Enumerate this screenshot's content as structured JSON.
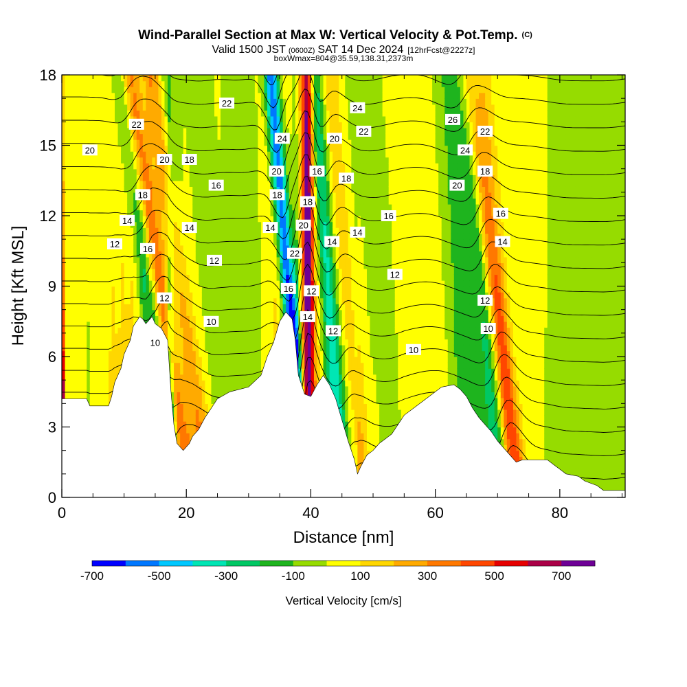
{
  "title": {
    "main": "Wind-Parallel Section at Max W: Vertical Velocity & Pot.Temp.",
    "copyright": "(C)",
    "valid_a": "Valid 1500 JST",
    "valid_utc": "(0600Z)",
    "valid_b": "SAT 14 Dec 2024",
    "fcst": "[12hrFcst@2227z]",
    "boxinfo": "boxWmax=804@35.59,138.31,2373m"
  },
  "chart_data": {
    "type": "heatmap",
    "xlabel": "Distance [nm]",
    "ylabel": "Height [Kft MSL]",
    "xlim": [
      0,
      90.5
    ],
    "ylim": [
      0,
      18
    ],
    "x_ticks": [
      0,
      20,
      40,
      60,
      80
    ],
    "y_ticks": [
      0,
      3,
      6,
      9,
      12,
      15,
      18
    ],
    "x_minor_step": 5,
    "y_minor_step": 1,
    "colorbar": {
      "label": "Vertical Velocity [cm/s]",
      "min": -700,
      "max": 800,
      "step": 100,
      "tick_labels": [
        -700,
        -500,
        -300,
        -100,
        100,
        300,
        500,
        700
      ],
      "colors": [
        "#0000ff",
        "#0077ff",
        "#00c8ff",
        "#00e6b4",
        "#00c864",
        "#1eb41e",
        "#96dc00",
        "#ffff00",
        "#ffd700",
        "#ffaa00",
        "#ff7800",
        "#ff4600",
        "#e60000",
        "#aa0046",
        "#6e0096"
      ]
    },
    "terrain_kft": [
      [
        0,
        4.2
      ],
      [
        4,
        4.2
      ],
      [
        4.5,
        3.9
      ],
      [
        7.5,
        3.9
      ],
      [
        8,
        4.3
      ],
      [
        8.5,
        4.9
      ],
      [
        9.5,
        5.5
      ],
      [
        10,
        6.1
      ],
      [
        11,
        6.7
      ],
      [
        11.5,
        7.3
      ],
      [
        12.5,
        7.7
      ],
      [
        13,
        7.6
      ],
      [
        13.5,
        7.4
      ],
      [
        14.5,
        7.7
      ],
      [
        15,
        7.4
      ],
      [
        16,
        7.2
      ],
      [
        17,
        6.7
      ],
      [
        17.5,
        4.6
      ],
      [
        18,
        3.1
      ],
      [
        18.5,
        2.3
      ],
      [
        19.5,
        2.0
      ],
      [
        20.5,
        2.3
      ],
      [
        21,
        2.6
      ],
      [
        22,
        2.9
      ],
      [
        23,
        3.4
      ],
      [
        24,
        3.8
      ],
      [
        25,
        4.2
      ],
      [
        27,
        4.5
      ],
      [
        30,
        4.7
      ],
      [
        32,
        5.2
      ],
      [
        33,
        6.0
      ],
      [
        34,
        6.6
      ],
      [
        35,
        7.5
      ],
      [
        36,
        7.9
      ],
      [
        37,
        7.6
      ],
      [
        37.5,
        6.7
      ],
      [
        38,
        5.2
      ],
      [
        39,
        4.4
      ],
      [
        40,
        4.3
      ],
      [
        41,
        4.8
      ],
      [
        42,
        5.2
      ],
      [
        43,
        4.8
      ],
      [
        44,
        4.2
      ],
      [
        45,
        3.3
      ],
      [
        46,
        2.4
      ],
      [
        47,
        1.6
      ],
      [
        47.5,
        1.0
      ],
      [
        48,
        1.3
      ],
      [
        49,
        1.8
      ],
      [
        50,
        2.0
      ],
      [
        51,
        2.3
      ],
      [
        52,
        2.5
      ],
      [
        53,
        2.7
      ],
      [
        54,
        3.1
      ],
      [
        55,
        3.5
      ],
      [
        57,
        3.9
      ],
      [
        59,
        4.3
      ],
      [
        61,
        4.7
      ],
      [
        63,
        4.8
      ],
      [
        64,
        4.6
      ],
      [
        65,
        4.3
      ],
      [
        66,
        3.8
      ],
      [
        67,
        3.4
      ],
      [
        68,
        3.1
      ],
      [
        69,
        2.8
      ],
      [
        70,
        2.4
      ],
      [
        71,
        2.1
      ],
      [
        72,
        1.8
      ],
      [
        73,
        1.5
      ],
      [
        74,
        1.6
      ],
      [
        78,
        1.6
      ],
      [
        79,
        1.4
      ],
      [
        80,
        1.2
      ],
      [
        81,
        1.0
      ],
      [
        83,
        0.9
      ],
      [
        84,
        0.7
      ],
      [
        86,
        0.5
      ],
      [
        87,
        0.3
      ],
      [
        90.5,
        0.3
      ]
    ],
    "w_field_cm_s": {
      "background": 30,
      "terrain_forced_coeff": 130,
      "bands": [
        {
          "x0": 22,
          "z0": 2.5,
          "slope_nm_per_kft": -0.48,
          "amplitude": 320,
          "width_nm": 1.6
        },
        {
          "x0": 17.8,
          "z0": 5,
          "slope_nm_per_kft": -0.55,
          "amplitude": 420,
          "width_nm": 1.6
        },
        {
          "x0": 15.3,
          "z0": 6,
          "slope_nm_per_kft": -0.46,
          "amplitude": -320,
          "width_nm": 1.5
        },
        {
          "x0": 19.5,
          "z0": 7,
          "slope_nm_per_kft": -0.3,
          "amplitude": -140,
          "width_nm": 1.6
        },
        {
          "x0": 25,
          "z0": 5,
          "slope_nm_per_kft": -0.25,
          "amplitude": -110,
          "width_nm": 2.2
        },
        {
          "x0": 30.5,
          "z0": 6,
          "slope_nm_per_kft": -0.18,
          "amplitude": -110,
          "width_nm": 2.5
        },
        {
          "x0": 37.2,
          "z0": 6,
          "slope_nm_per_kft": -0.3,
          "amplitude": -620,
          "width_nm": 1.1
        },
        {
          "x0": 39.6,
          "z0": 6,
          "slope_nm_per_kft": -0.02,
          "amplitude": 760,
          "width_nm": 1.0
        },
        {
          "x0": 43.5,
          "z0": 6,
          "slope_nm_per_kft": -0.25,
          "amplitude": -330,
          "width_nm": 1.3
        },
        {
          "x0": 46.5,
          "z0": 6,
          "slope_nm_per_kft": -0.28,
          "amplitude": 170,
          "width_nm": 1.4
        },
        {
          "x0": 51.5,
          "z0": 8,
          "slope_nm_per_kft": -0.3,
          "amplitude": -110,
          "width_nm": 2.5
        },
        {
          "x0": 63.5,
          "z0": 10,
          "slope_nm_per_kft": -0.2,
          "amplitude": -150,
          "width_nm": 2.0
        },
        {
          "x0": 70.5,
          "z0": 8,
          "slope_nm_per_kft": -0.3,
          "amplitude": 180,
          "width_nm": 1.5
        },
        {
          "x0": 69.5,
          "z0": 3,
          "slope_nm_per_kft": -0.3,
          "amplitude": -250,
          "width_nm": 1.8
        },
        {
          "x0": 67.5,
          "z0": 13,
          "slope_nm_per_kft": -0.45,
          "amplitude": 350,
          "width_nm": 1.4
        },
        {
          "x0": 81,
          "z0": 6,
          "slope_nm_per_kft": 0,
          "amplitude": -90,
          "width_nm": 3.0
        },
        {
          "x0": 88,
          "z0": 6,
          "slope_nm_per_kft": 0,
          "amplitude": -90,
          "width_nm": 3.0
        }
      ]
    },
    "theta_contours": {
      "units": "degC",
      "levels_min": 9,
      "levels_max": 29,
      "step": 1,
      "model": {
        "surface": 9.0,
        "lapse_per_kft": 1.0
      },
      "labels": [
        {
          "text": "20",
          "x": 4.5,
          "y": 14.8
        },
        {
          "text": "22",
          "x": 12,
          "y": 15.9
        },
        {
          "text": "18",
          "x": 13,
          "y": 12.9
        },
        {
          "text": "14",
          "x": 10.5,
          "y": 11.8
        },
        {
          "text": "12",
          "x": 8.5,
          "y": 10.8
        },
        {
          "text": "16",
          "x": 13.8,
          "y": 10.6
        },
        {
          "text": "10",
          "x": 15,
          "y": 6.6
        },
        {
          "text": "12",
          "x": 16.5,
          "y": 8.5
        },
        {
          "text": "20",
          "x": 16.5,
          "y": 14.4
        },
        {
          "text": "18",
          "x": 20.5,
          "y": 14.4
        },
        {
          "text": "14",
          "x": 20.5,
          "y": 11.5
        },
        {
          "text": "16",
          "x": 24.8,
          "y": 13.3
        },
        {
          "text": "12",
          "x": 24.5,
          "y": 10.1
        },
        {
          "text": "10",
          "x": 24,
          "y": 7.5
        },
        {
          "text": "22",
          "x": 26.5,
          "y": 16.8
        },
        {
          "text": "14",
          "x": 33.5,
          "y": 11.5
        },
        {
          "text": "20",
          "x": 34.5,
          "y": 13.9
        },
        {
          "text": "18",
          "x": 34.6,
          "y": 12.9
        },
        {
          "text": "24",
          "x": 35.4,
          "y": 15.3
        },
        {
          "text": "22",
          "x": 37.4,
          "y": 10.4
        },
        {
          "text": "16",
          "x": 36.4,
          "y": 8.9
        },
        {
          "text": "20",
          "x": 38.8,
          "y": 11.6
        },
        {
          "text": "18",
          "x": 39.5,
          "y": 12.6
        },
        {
          "text": "16",
          "x": 41,
          "y": 13.9
        },
        {
          "text": "12",
          "x": 40.1,
          "y": 8.8
        },
        {
          "text": "14",
          "x": 39.5,
          "y": 7.7
        },
        {
          "text": "20",
          "x": 43.8,
          "y": 15.3
        },
        {
          "text": "14",
          "x": 43.4,
          "y": 10.9
        },
        {
          "text": "12",
          "x": 43.6,
          "y": 7.1
        },
        {
          "text": "18",
          "x": 45.7,
          "y": 13.6
        },
        {
          "text": "22",
          "x": 48.5,
          "y": 15.6
        },
        {
          "text": "24",
          "x": 47.5,
          "y": 16.6
        },
        {
          "text": "14",
          "x": 47.5,
          "y": 11.3
        },
        {
          "text": "16",
          "x": 52.5,
          "y": 12.0
        },
        {
          "text": "12",
          "x": 53.5,
          "y": 9.5
        },
        {
          "text": "10",
          "x": 56.5,
          "y": 6.3
        },
        {
          "text": "26",
          "x": 62.8,
          "y": 16.1
        },
        {
          "text": "24",
          "x": 64.8,
          "y": 14.8
        },
        {
          "text": "20",
          "x": 63.5,
          "y": 13.3
        },
        {
          "text": "22",
          "x": 68,
          "y": 15.6
        },
        {
          "text": "18",
          "x": 68,
          "y": 13.9
        },
        {
          "text": "16",
          "x": 70.5,
          "y": 12.1
        },
        {
          "text": "14",
          "x": 70.8,
          "y": 10.9
        },
        {
          "text": "12",
          "x": 68,
          "y": 8.4
        },
        {
          "text": "10",
          "x": 68.5,
          "y": 7.2
        }
      ]
    }
  }
}
